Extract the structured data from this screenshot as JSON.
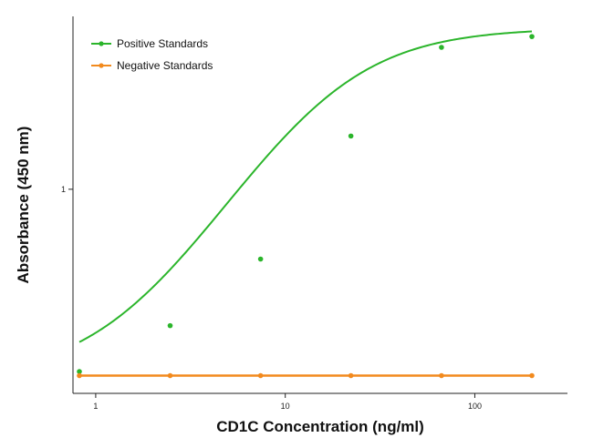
{
  "chart_data": {
    "type": "scatter",
    "title": "",
    "xlabel": "CD1C Concentration (ng/ml)",
    "ylabel": "Absorbance (450 nm)",
    "x_scale": "log",
    "y_scale": "log",
    "xlim": [
      0.82,
      400
    ],
    "ylim": [
      0.165,
      4.6
    ],
    "x_ticks": [
      1,
      10,
      100
    ],
    "x_tick_labels": [
      "1",
      "10",
      "100"
    ],
    "y_ticks": [
      1
    ],
    "y_tick_labels": [
      "1"
    ],
    "grid": false,
    "legend_position": "top-left",
    "series": [
      {
        "name": "Positive Standards",
        "color": "#2bb52b",
        "marker": "circle",
        "x": [
          0.82,
          2.47,
          7.41,
          22.2,
          66.7,
          200
        ],
        "y": [
          0.2,
          0.3,
          0.54,
          1.6,
          3.5,
          3.85
        ],
        "fit_curve": true
      },
      {
        "name": "Negative Standards",
        "color": "#f28a1e",
        "marker": "circle",
        "x": [
          0.82,
          2.47,
          7.41,
          22.2,
          66.7,
          200
        ],
        "y": [
          0.193,
          0.193,
          0.193,
          0.193,
          0.193,
          0.193
        ],
        "fit_curve": false
      }
    ]
  }
}
